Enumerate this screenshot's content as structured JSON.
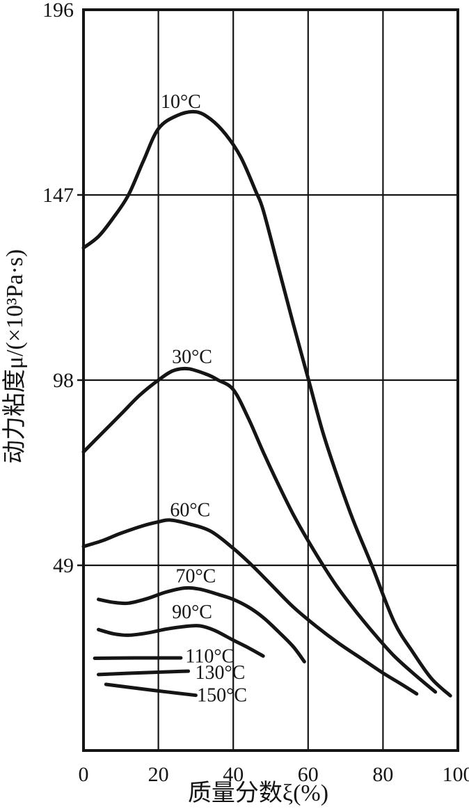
{
  "page": {
    "background": "#ffffff",
    "ink": "#151515"
  },
  "chart_data": {
    "type": "line",
    "title": "",
    "xlabel": "质量分数ξ(%)",
    "ylabel": "动力粘度μ/(×10³Pa·s)",
    "xlim": [
      0,
      100
    ],
    "ylim": [
      0,
      196
    ],
    "xticks": [
      0,
      20,
      40,
      60,
      80,
      100
    ],
    "yticks": [
      49,
      98,
      147,
      196
    ],
    "grid": true,
    "legend_position": "labels-on-curves",
    "series": [
      {
        "name": "10°C",
        "label": "10°C",
        "label_at": [
          26,
          170
        ],
        "points": [
          [
            0,
            133
          ],
          [
            4,
            136
          ],
          [
            8,
            141
          ],
          [
            12,
            147
          ],
          [
            16,
            156
          ],
          [
            20,
            164.5
          ],
          [
            25,
            168
          ],
          [
            30,
            169
          ],
          [
            34,
            167
          ],
          [
            38,
            163
          ],
          [
            42,
            157
          ],
          [
            46,
            148
          ],
          [
            48,
            143
          ],
          [
            52,
            128
          ],
          [
            56,
            113
          ],
          [
            60,
            98.5
          ],
          [
            64,
            84
          ],
          [
            68,
            72
          ],
          [
            72,
            61
          ],
          [
            77,
            49
          ],
          [
            83,
            34
          ],
          [
            88,
            26
          ],
          [
            93,
            19
          ],
          [
            98,
            14.5
          ]
        ]
      },
      {
        "name": "30°C",
        "label": "30°C",
        "label_at": [
          29,
          102.5
        ],
        "points": [
          [
            0,
            79
          ],
          [
            5,
            84
          ],
          [
            10,
            89
          ],
          [
            15,
            94
          ],
          [
            20,
            98
          ],
          [
            24,
            100.5
          ],
          [
            28,
            101
          ],
          [
            33,
            99.5
          ],
          [
            36,
            98
          ],
          [
            40,
            95.5
          ],
          [
            44,
            88
          ],
          [
            48,
            79
          ],
          [
            52,
            70.5
          ],
          [
            56,
            62.5
          ],
          [
            60,
            55.5
          ],
          [
            64,
            49
          ],
          [
            68,
            43
          ],
          [
            73,
            36.5
          ],
          [
            78,
            30.5
          ],
          [
            83,
            25
          ],
          [
            88,
            20.5
          ],
          [
            94,
            15.5
          ]
        ]
      },
      {
        "name": "60°C",
        "label": "60°C",
        "label_at": [
          28.5,
          62
        ],
        "points": [
          [
            0,
            54
          ],
          [
            5,
            55.5
          ],
          [
            10,
            57.5
          ],
          [
            16,
            59.5
          ],
          [
            20,
            60.5
          ],
          [
            23,
            61
          ],
          [
            28,
            60
          ],
          [
            34,
            58
          ],
          [
            40,
            53.5
          ],
          [
            45,
            49
          ],
          [
            50,
            44
          ],
          [
            56,
            38
          ],
          [
            62,
            33
          ],
          [
            68,
            28.5
          ],
          [
            74,
            24.5
          ],
          [
            80,
            20.5
          ],
          [
            85,
            17.5
          ],
          [
            89,
            15
          ]
        ]
      },
      {
        "name": "70°C",
        "label": "70°C",
        "label_at": [
          30,
          44.5
        ],
        "points": [
          [
            4,
            40
          ],
          [
            8,
            39.2
          ],
          [
            12,
            39
          ],
          [
            17,
            40.2
          ],
          [
            22,
            41.9
          ],
          [
            27,
            43
          ],
          [
            31,
            42.7
          ],
          [
            36,
            41.3
          ],
          [
            40,
            40
          ],
          [
            44,
            38
          ],
          [
            48,
            35.2
          ],
          [
            52,
            31.5
          ],
          [
            56,
            27.5
          ],
          [
            59,
            23.5
          ]
        ]
      },
      {
        "name": "90°C",
        "label": "90°C",
        "label_at": [
          29,
          35
        ],
        "points": [
          [
            4,
            32
          ],
          [
            8,
            30.9
          ],
          [
            12,
            30.5
          ],
          [
            17,
            31.1
          ],
          [
            22,
            32.1
          ],
          [
            27,
            32.8
          ],
          [
            31,
            33
          ],
          [
            35,
            31.8
          ],
          [
            40,
            29.2
          ],
          [
            44,
            27.2
          ],
          [
            48,
            25
          ]
        ]
      },
      {
        "name": "110°C",
        "label": "110°C",
        "label_at": [
          33.8,
          23.3
        ],
        "points": [
          [
            3,
            24.4
          ],
          [
            14,
            24.5
          ],
          [
            26,
            24.5
          ]
        ]
      },
      {
        "name": "130°C",
        "label": "130°C",
        "label_at": [
          36.5,
          19
        ],
        "points": [
          [
            4,
            20.1
          ],
          [
            16,
            20.6
          ],
          [
            28,
            21
          ]
        ]
      },
      {
        "name": "150°C",
        "label": "150°C",
        "label_at": [
          37,
          13
        ],
        "points": [
          [
            6,
            17.5
          ],
          [
            18,
            16
          ],
          [
            30,
            14.6
          ]
        ]
      }
    ]
  }
}
